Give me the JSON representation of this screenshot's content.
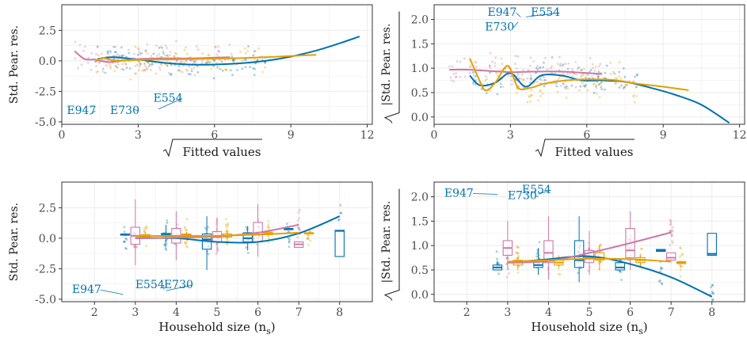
{
  "colors": {
    "blue": "#0072B2",
    "orange": "#E69F00",
    "pink": "#CC79A7",
    "grid": "#ebebeb",
    "frame": "#333333"
  },
  "chart_data": [
    {
      "type": "scatter",
      "panel": "top-left",
      "xlabel": "Fitted values",
      "xlabel_sqrt": true,
      "ylabel": "Std. Pear. res.",
      "ylabel_sqrt": false,
      "xlim": [
        0,
        12.2
      ],
      "ylim": [
        -5.2,
        4.6
      ],
      "xticks": [
        0,
        3,
        6,
        9,
        12
      ],
      "xticklabels": [
        "0",
        "3",
        "6",
        "9",
        "12"
      ],
      "yticks": [
        -5.0,
        -2.5,
        0.0,
        2.5
      ],
      "yticklabels": [
        "-5.0",
        "-2.5",
        "0.0",
        "2.5"
      ],
      "grid": true,
      "annotations": [
        {
          "text": "E947",
          "x": 0.2,
          "y": -4.35,
          "color": "blue",
          "px": 1.1,
          "py": -4.4
        },
        {
          "text": "E730",
          "x": 1.9,
          "y": -4.35,
          "color": "blue",
          "px": 2.85,
          "py": -4.0
        },
        {
          "text": "E554",
          "x": 3.6,
          "y": -3.35,
          "color": "blue",
          "px": 3.8,
          "py": -3.95
        }
      ],
      "series": [
        {
          "color": "blue",
          "smooth": [
            [
              1.4,
              0.15
            ],
            [
              2.0,
              0.3
            ],
            [
              3.0,
              0.1
            ],
            [
              4.0,
              -0.15
            ],
            [
              5.0,
              -0.3
            ],
            [
              6.0,
              -0.3
            ],
            [
              7.0,
              -0.2
            ],
            [
              8.0,
              0.0
            ],
            [
              9.0,
              0.35
            ],
            [
              10.0,
              0.85
            ],
            [
              11.0,
              1.5
            ],
            [
              11.7,
              2.0
            ]
          ]
        },
        {
          "color": "pink",
          "smooth": [
            [
              0.5,
              0.8
            ],
            [
              0.9,
              0.15
            ],
            [
              1.3,
              0.1
            ],
            [
              1.8,
              -0.1
            ],
            [
              2.3,
              0.0
            ],
            [
              3.0,
              0.15
            ],
            [
              4.0,
              0.2
            ],
            [
              5.0,
              0.2
            ],
            [
              5.8,
              0.25
            ],
            [
              6.6,
              0.3
            ]
          ]
        },
        {
          "color": "orange",
          "smooth": [
            [
              1.3,
              -0.1
            ],
            [
              1.6,
              0.25
            ],
            [
              2.0,
              0.05
            ],
            [
              2.6,
              0.05
            ],
            [
              3.5,
              0.1
            ],
            [
              5.0,
              0.15
            ],
            [
              6.5,
              0.2
            ],
            [
              8.0,
              0.3
            ],
            [
              9.0,
              0.4
            ],
            [
              10.0,
              0.5
            ]
          ]
        }
      ]
    },
    {
      "type": "scatter",
      "panel": "top-right",
      "xlabel": "Fitted values",
      "xlabel_sqrt": true,
      "ylabel": "|Std. Pear. res.",
      "ylabel_sqrt": true,
      "xlim": [
        0,
        12.2
      ],
      "ylim": [
        -0.15,
        2.3
      ],
      "xticks": [
        0,
        3,
        6,
        9,
        12
      ],
      "xticklabels": [
        "0",
        "3",
        "6",
        "9",
        "12"
      ],
      "yticks": [
        0.0,
        0.5,
        1.0,
        1.5,
        2.0
      ],
      "yticklabels": [
        "0.0",
        "0.5",
        "1.0",
        "1.5",
        "2.0"
      ],
      "grid": true,
      "annotations": [
        {
          "text": "E947",
          "x": 2.1,
          "y": 2.07,
          "color": "blue",
          "px": 3.4,
          "py": 2.05
        },
        {
          "text": "E554",
          "x": 3.8,
          "y": 2.07,
          "color": "blue",
          "px": 3.6,
          "py": 2.05
        },
        {
          "text": "E730",
          "x": 2.0,
          "y": 1.77,
          "color": "blue",
          "px": 3.3,
          "py": 1.95
        }
      ],
      "series": [
        {
          "color": "blue",
          "smooth": [
            [
              1.4,
              0.85
            ],
            [
              1.8,
              0.65
            ],
            [
              2.4,
              0.7
            ],
            [
              3.0,
              0.9
            ],
            [
              3.6,
              0.62
            ],
            [
              4.2,
              0.85
            ],
            [
              5.0,
              0.85
            ],
            [
              5.8,
              0.75
            ],
            [
              6.5,
              0.75
            ],
            [
              7.5,
              0.72
            ],
            [
              8.5,
              0.6
            ],
            [
              9.5,
              0.45
            ],
            [
              10.5,
              0.25
            ],
            [
              11.6,
              -0.12
            ]
          ]
        },
        {
          "color": "pink",
          "smooth": [
            [
              0.6,
              0.97
            ],
            [
              1.3,
              0.97
            ],
            [
              2.0,
              0.95
            ],
            [
              3.0,
              0.92
            ],
            [
              4.0,
              0.93
            ],
            [
              5.0,
              0.93
            ],
            [
              6.0,
              0.9
            ],
            [
              6.6,
              0.88
            ]
          ]
        },
        {
          "color": "orange",
          "smooth": [
            [
              1.4,
              1.2
            ],
            [
              1.7,
              0.85
            ],
            [
              2.0,
              0.55
            ],
            [
              2.4,
              0.7
            ],
            [
              2.9,
              1.05
            ],
            [
              3.3,
              0.6
            ],
            [
              3.8,
              0.6
            ],
            [
              4.3,
              0.68
            ],
            [
              5.0,
              0.74
            ],
            [
              6.0,
              0.77
            ],
            [
              7.0,
              0.76
            ],
            [
              8.0,
              0.68
            ],
            [
              9.0,
              0.62
            ],
            [
              10.0,
              0.55
            ]
          ]
        }
      ]
    },
    {
      "type": "box",
      "panel": "bottom-left",
      "xlabel": "Household size (n",
      "xlabel_sub": "s",
      "xlabel_close": ")",
      "ylabel": "Std. Pear. res.",
      "ylabel_sqrt": false,
      "xlim": [
        1.2,
        8.8
      ],
      "ylim": [
        -5.2,
        4.6
      ],
      "xticks": [
        2,
        3,
        4,
        5,
        6,
        7,
        8
      ],
      "xticklabels": [
        "2",
        "3",
        "4",
        "5",
        "6",
        "7",
        "8"
      ],
      "yticks": [
        -5.0,
        -2.5,
        0.0,
        2.5
      ],
      "yticklabels": [
        "-5.0",
        "-2.5",
        "0.0",
        "2.5"
      ],
      "grid": true,
      "annotations": [
        {
          "text": "E947",
          "x": 1.45,
          "y": -4.5,
          "color": "blue",
          "px": 2.7,
          "py": -4.6
        },
        {
          "text": "E554",
          "x": 3.0,
          "y": -4.1,
          "color": "blue",
          "px": 3.7,
          "py": -4.2
        },
        {
          "text": "E730",
          "x": 3.7,
          "y": -4.1,
          "color": "blue",
          "px": 3.75,
          "py": -4.3
        }
      ],
      "boxes": [
        {
          "color": "blue",
          "x": 2.75,
          "q1": 0.25,
          "med": 0.3,
          "q3": 0.35,
          "lo": 0.2,
          "hi": 0.4
        },
        {
          "color": "pink",
          "x": 3.0,
          "q1": -0.5,
          "med": 0.2,
          "q3": 0.9,
          "lo": -2.2,
          "hi": 3.2
        },
        {
          "color": "orange",
          "x": 3.25,
          "q1": 0.1,
          "med": 0.2,
          "q3": 0.3,
          "lo": 0.0,
          "hi": 0.45
        },
        {
          "color": "blue",
          "x": 3.75,
          "q1": 0.15,
          "med": 0.3,
          "q3": 0.4,
          "lo": -0.3,
          "hi": 1.1
        },
        {
          "color": "pink",
          "x": 4.0,
          "q1": -0.4,
          "med": 0.15,
          "q3": 0.8,
          "lo": -1.8,
          "hi": 2.2
        },
        {
          "color": "orange",
          "x": 4.25,
          "q1": 0.15,
          "med": 0.25,
          "q3": 0.35,
          "lo": 0.0,
          "hi": 0.5
        },
        {
          "color": "blue",
          "x": 4.75,
          "q1": -0.9,
          "med": -0.1,
          "q3": 0.35,
          "lo": -2.6,
          "hi": 1.8
        },
        {
          "color": "pink",
          "x": 5.0,
          "q1": -0.3,
          "med": 0.1,
          "q3": 0.55,
          "lo": -1.2,
          "hi": 1.7
        },
        {
          "color": "orange",
          "x": 5.25,
          "q1": 0.1,
          "med": 0.2,
          "q3": 0.35,
          "lo": -0.1,
          "hi": 0.6
        },
        {
          "color": "blue",
          "x": 5.75,
          "q1": -0.3,
          "med": 0.0,
          "q3": 0.45,
          "lo": -1.0,
          "hi": 1.0
        },
        {
          "color": "pink",
          "x": 6.0,
          "q1": -0.3,
          "med": 0.3,
          "q3": 1.3,
          "lo": -1.5,
          "hi": 2.8
        },
        {
          "color": "orange",
          "x": 6.25,
          "q1": 0.3,
          "med": 0.4,
          "q3": 0.5,
          "lo": 0.1,
          "hi": 0.7
        },
        {
          "color": "blue",
          "x": 6.75,
          "q1": 0.7,
          "med": 0.75,
          "q3": 0.8,
          "lo": 0.7,
          "hi": 0.8
        },
        {
          "color": "pink",
          "x": 7.0,
          "q1": -0.75,
          "med": -0.5,
          "q3": -0.3,
          "lo": -0.75,
          "hi": -0.3
        },
        {
          "color": "orange",
          "x": 7.25,
          "q1": 0.35,
          "med": 0.4,
          "q3": 0.45,
          "lo": 0.35,
          "hi": 0.45
        },
        {
          "color": "blue",
          "x": 8.0,
          "q1": -1.5,
          "med": 0.6,
          "q3": 0.65,
          "lo": -1.5,
          "hi": 0.65
        }
      ],
      "series": [
        {
          "color": "blue",
          "smooth": [
            [
              3.0,
              0.0
            ],
            [
              4.0,
              0.0
            ],
            [
              5.0,
              -0.3
            ],
            [
              6.0,
              -0.3
            ],
            [
              7.0,
              0.4
            ],
            [
              8.0,
              1.8
            ]
          ]
        },
        {
          "color": "pink",
          "smooth": [
            [
              3.0,
              0.0
            ],
            [
              4.0,
              0.05
            ],
            [
              5.0,
              0.15
            ],
            [
              6.0,
              0.45
            ],
            [
              7.0,
              1.1
            ]
          ]
        },
        {
          "color": "orange",
          "smooth": [
            [
              3.0,
              0.15
            ],
            [
              4.0,
              0.2
            ],
            [
              5.0,
              0.2
            ],
            [
              6.0,
              0.3
            ],
            [
              7.0,
              0.45
            ]
          ]
        }
      ]
    },
    {
      "type": "box",
      "panel": "bottom-right",
      "xlabel": "Household size (n",
      "xlabel_sub": "s",
      "xlabel_close": ")",
      "ylabel": "|Std. Pear. res.",
      "ylabel_sqrt": true,
      "xlim": [
        1.2,
        8.8
      ],
      "ylim": [
        -0.15,
        2.3
      ],
      "xticks": [
        2,
        3,
        4,
        5,
        6,
        7,
        8
      ],
      "xticklabels": [
        "2",
        "3",
        "4",
        "5",
        "6",
        "7",
        "8"
      ],
      "yticks": [
        0.0,
        0.5,
        1.0,
        1.5,
        2.0
      ],
      "yticklabels": [
        "0.0",
        "0.5",
        "1.0",
        "1.5",
        "2.0"
      ],
      "grid": true,
      "annotations": [
        {
          "text": "E947",
          "x": 1.45,
          "y": 2.0,
          "color": "blue",
          "px": 2.75,
          "py": 2.05
        },
        {
          "text": "E554",
          "x": 3.35,
          "y": 2.07,
          "color": "blue",
          "px": 3.75,
          "py": 2.05
        },
        {
          "text": "E730",
          "x": 3.0,
          "y": 1.95,
          "color": "blue",
          "px": 3.75,
          "py": 2.0
        }
      ],
      "boxes": [
        {
          "color": "blue",
          "x": 2.75,
          "q1": 0.5,
          "med": 0.55,
          "q3": 0.6,
          "lo": 0.5,
          "hi": 0.6
        },
        {
          "color": "pink",
          "x": 3.0,
          "q1": 0.8,
          "med": 0.95,
          "q3": 1.1,
          "lo": 0.5,
          "hi": 1.5
        },
        {
          "color": "orange",
          "x": 3.25,
          "q1": 0.6,
          "med": 0.65,
          "q3": 0.7,
          "lo": 0.5,
          "hi": 0.75
        },
        {
          "color": "blue",
          "x": 3.75,
          "q1": 0.55,
          "med": 0.6,
          "q3": 0.7,
          "lo": 0.4,
          "hi": 0.95
        },
        {
          "color": "pink",
          "x": 4.0,
          "q1": 0.65,
          "med": 0.85,
          "q3": 1.1,
          "lo": 0.3,
          "hi": 1.6
        },
        {
          "color": "orange",
          "x": 4.25,
          "q1": 0.6,
          "med": 0.65,
          "q3": 0.7,
          "lo": 0.55,
          "hi": 0.8
        },
        {
          "color": "blue",
          "x": 4.75,
          "q1": 0.55,
          "med": 0.7,
          "q3": 1.1,
          "lo": 0.25,
          "hi": 1.6
        },
        {
          "color": "pink",
          "x": 5.0,
          "q1": 0.65,
          "med": 0.75,
          "q3": 0.9,
          "lo": 0.4,
          "hi": 1.3
        },
        {
          "color": "orange",
          "x": 5.25,
          "q1": 0.7,
          "med": 0.75,
          "q3": 0.85,
          "lo": 0.5,
          "hi": 1.0
        },
        {
          "color": "blue",
          "x": 5.75,
          "q1": 0.5,
          "med": 0.55,
          "q3": 0.65,
          "lo": 0.45,
          "hi": 0.7
        },
        {
          "color": "pink",
          "x": 6.0,
          "q1": 0.75,
          "med": 0.9,
          "q3": 1.35,
          "lo": 0.5,
          "hi": 1.7
        },
        {
          "color": "orange",
          "x": 6.25,
          "q1": 0.65,
          "med": 0.7,
          "q3": 0.75,
          "lo": 0.55,
          "hi": 0.8
        },
        {
          "color": "blue",
          "x": 6.75,
          "q1": 0.88,
          "med": 0.9,
          "q3": 0.92,
          "lo": 0.88,
          "hi": 0.92
        },
        {
          "color": "pink",
          "x": 7.0,
          "q1": 0.7,
          "med": 0.75,
          "q3": 0.85,
          "lo": 0.7,
          "hi": 0.85
        },
        {
          "color": "orange",
          "x": 7.25,
          "q1": 0.63,
          "med": 0.65,
          "q3": 0.67,
          "lo": 0.63,
          "hi": 0.67
        },
        {
          "color": "blue",
          "x": 8.0,
          "q1": 0.8,
          "med": 0.83,
          "q3": 1.25,
          "lo": 0.8,
          "hi": 1.25
        }
      ],
      "series": [
        {
          "color": "blue",
          "smooth": [
            [
              3.0,
              0.65
            ],
            [
              4.0,
              0.72
            ],
            [
              5.0,
              0.78
            ],
            [
              6.0,
              0.62
            ],
            [
              7.0,
              0.35
            ],
            [
              8.0,
              -0.05
            ]
          ]
        },
        {
          "color": "pink",
          "smooth": [
            [
              3.0,
              0.65
            ],
            [
              4.0,
              0.68
            ],
            [
              5.0,
              0.85
            ],
            [
              6.0,
              1.05
            ],
            [
              7.0,
              1.27
            ]
          ]
        },
        {
          "color": "orange",
          "smooth": [
            [
              3.0,
              0.67
            ],
            [
              4.0,
              0.7
            ],
            [
              5.0,
              0.73
            ],
            [
              6.0,
              0.72
            ],
            [
              7.0,
              0.67
            ]
          ]
        }
      ]
    }
  ]
}
